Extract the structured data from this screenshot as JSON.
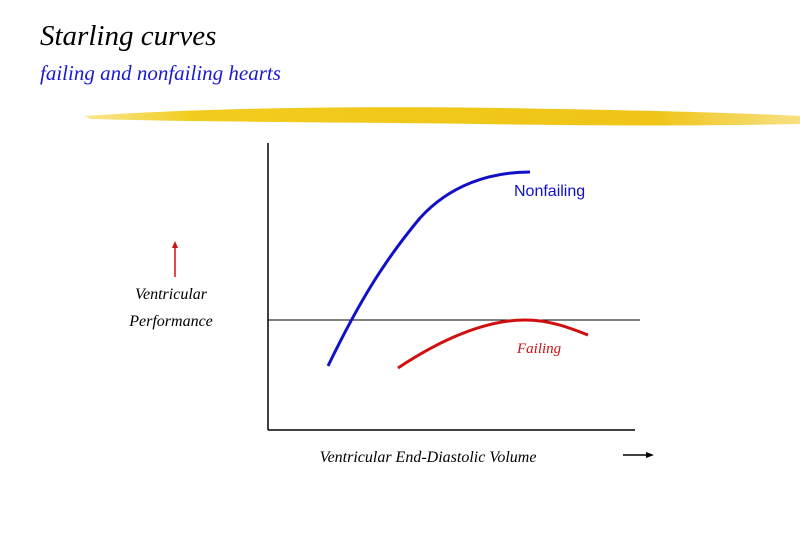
{
  "header": {
    "title": "Starling curves",
    "subtitle": "failing and nonfailing hearts"
  },
  "diagram": {
    "y_axis_label": [
      "Ventricular",
      "Performance"
    ],
    "x_axis_label": "Ventricular End-Diastolic Volume",
    "curves": [
      {
        "label": "Nonfailing"
      },
      {
        "label": "Failing"
      }
    ]
  }
}
